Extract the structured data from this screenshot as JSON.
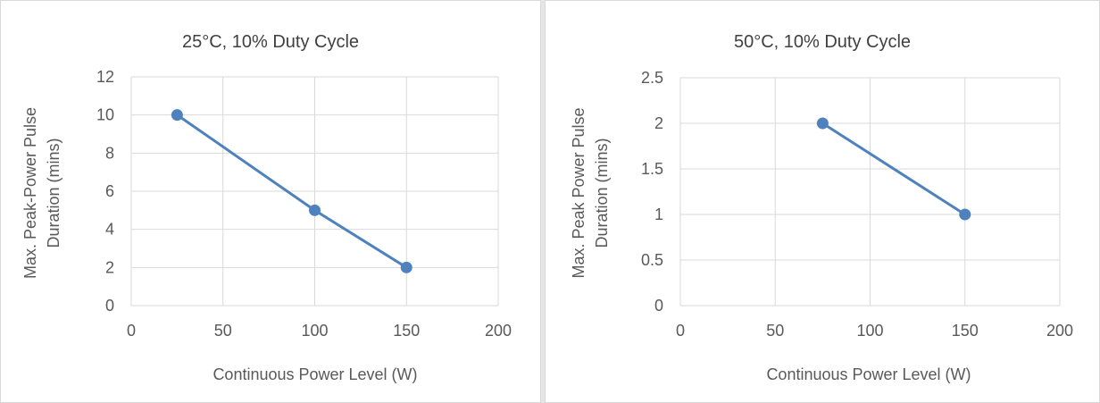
{
  "chart_data": [
    {
      "type": "line",
      "title": "25°C, 10% Duty Cycle",
      "xlabel": "Continuous Power Level (W)",
      "ylabel_lines": [
        "Max. Peak-Power Pulse",
        "Duration (mins)"
      ],
      "xlim": [
        0,
        200
      ],
      "ylim": [
        0,
        12
      ],
      "xticks": [
        "0",
        "50",
        "100",
        "150",
        "200"
      ],
      "yticks": [
        "0",
        "2",
        "4",
        "6",
        "8",
        "10",
        "12"
      ],
      "grid": true,
      "series": [
        {
          "x": [
            25,
            100,
            150
          ],
          "y": [
            10,
            5,
            2
          ],
          "color": "#4f81bd"
        }
      ]
    },
    {
      "type": "line",
      "title": "50°C, 10% Duty Cycle",
      "xlabel": "Continuous Power Level (W)",
      "ylabel_lines": [
        "Max. Peak Power Pulse",
        "Duration (mins)"
      ],
      "xlim": [
        0,
        200
      ],
      "ylim": [
        0,
        2.5
      ],
      "xticks": [
        "0",
        "50",
        "100",
        "150",
        "200"
      ],
      "yticks": [
        "0",
        "0.5",
        "1",
        "1.5",
        "2",
        "2.5"
      ],
      "grid": true,
      "series": [
        {
          "x": [
            75,
            150
          ],
          "y": [
            2,
            1
          ],
          "color": "#4f81bd"
        }
      ]
    }
  ]
}
